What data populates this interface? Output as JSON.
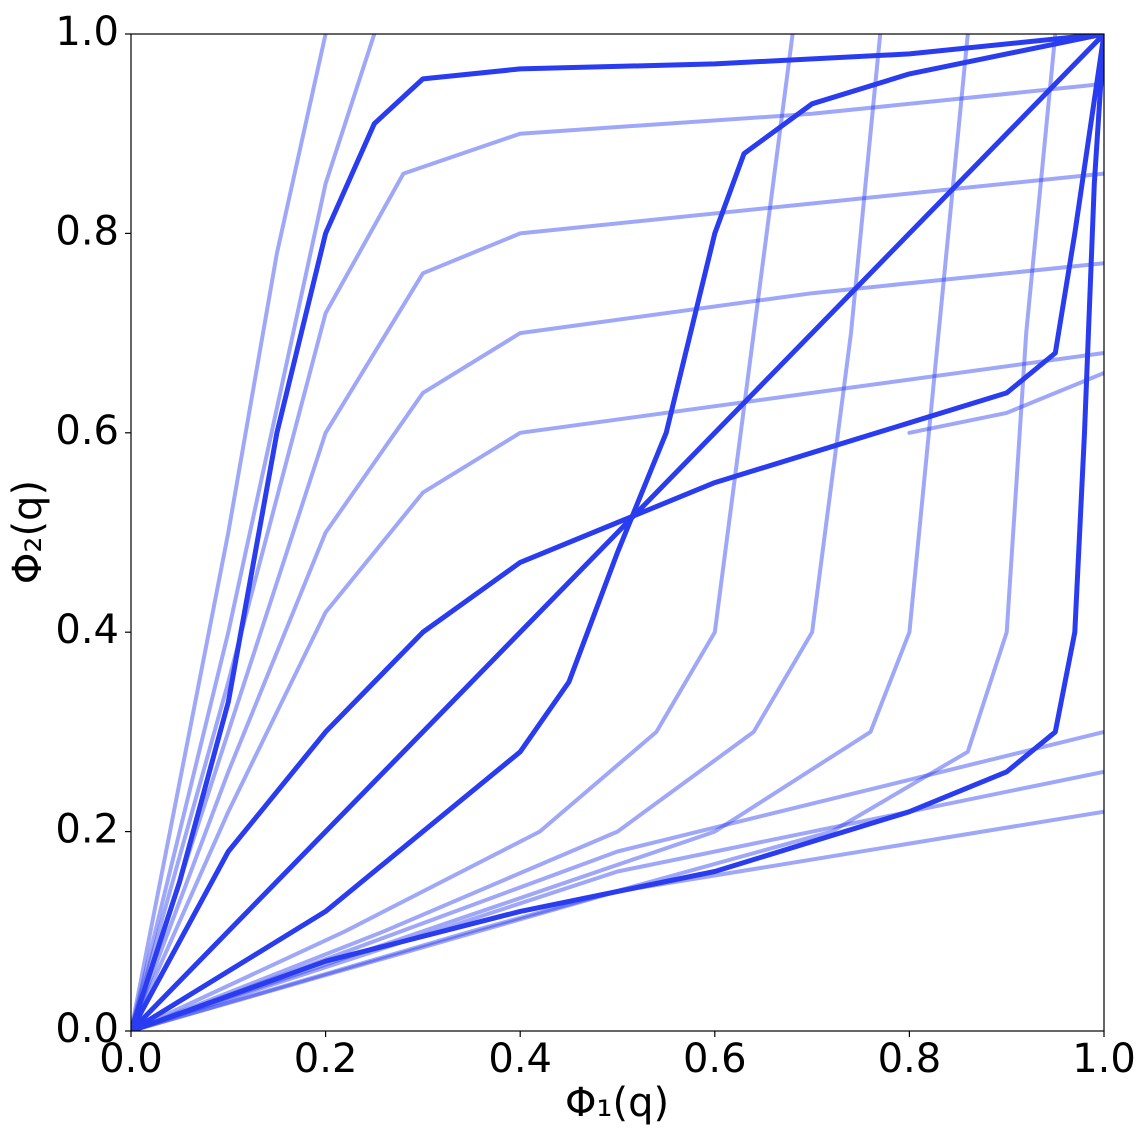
{
  "chart_data": {
    "type": "line",
    "xlabel": "Φ₁(q)",
    "ylabel": "Φ₂(q)",
    "xlim": [
      0,
      1
    ],
    "ylim": [
      0,
      1
    ],
    "xticks": [
      {
        "value": 0,
        "label": "0.0"
      },
      0.2,
      0.4,
      0.6,
      0.8,
      {
        "value": 1,
        "label": "1.0"
      }
    ],
    "yticks": [
      {
        "value": 0,
        "label": "0.0"
      },
      0.2,
      0.4,
      0.6,
      0.8,
      {
        "value": 1,
        "label": "1.0"
      }
    ],
    "grid": false,
    "series": [
      {
        "color": "#2a3cf0",
        "alpha": 0.45,
        "width": 4,
        "x": [
          0,
          0.1,
          0.2,
          0.28,
          0.4,
          0.7,
          1
        ],
        "values": [
          0,
          0.35,
          0.72,
          0.86,
          0.9,
          0.92,
          0.95
        ]
      },
      {
        "color": "#2a3cf0",
        "alpha": 0.45,
        "width": 4,
        "x": [
          0,
          0.1,
          0.2,
          0.3,
          0.4,
          0.7,
          1
        ],
        "values": [
          0,
          0.3,
          0.6,
          0.76,
          0.8,
          0.83,
          0.86
        ]
      },
      {
        "color": "#2a3cf0",
        "alpha": 0.45,
        "width": 4,
        "x": [
          0,
          0.1,
          0.2,
          0.3,
          0.4,
          0.7,
          1
        ],
        "values": [
          0,
          0.26,
          0.5,
          0.64,
          0.7,
          0.74,
          0.77
        ]
      },
      {
        "color": "#2a3cf0",
        "alpha": 0.45,
        "width": 4,
        "x": [
          0,
          0.1,
          0.2,
          0.3,
          0.4,
          0.7,
          1
        ],
        "values": [
          0,
          0.22,
          0.42,
          0.54,
          0.6,
          0.64,
          0.68
        ]
      },
      {
        "color": "#2a3cf0",
        "alpha": 0.45,
        "width": 4,
        "x": [
          0,
          0.05,
          0.1,
          0.15,
          0.2
        ],
        "values": [
          0,
          0.25,
          0.5,
          0.78,
          1
        ]
      },
      {
        "color": "#2a3cf0",
        "alpha": 0.45,
        "width": 4,
        "x": [
          0,
          0.1,
          0.2,
          0.25
        ],
        "values": [
          0,
          0.4,
          0.85,
          1
        ]
      },
      {
        "color": "#2a3cf0",
        "alpha": 0.45,
        "width": 4,
        "x": [
          0.8,
          0.9,
          1
        ],
        "values": [
          0.6,
          0.62,
          0.66
        ]
      },
      {
        "color": "#2a3cf0",
        "alpha": 0.45,
        "width": 4,
        "x": [
          0,
          0.35,
          0.72,
          0.86,
          0.9,
          0.92,
          0.95
        ],
        "values": [
          0,
          0.1,
          0.2,
          0.28,
          0.4,
          0.7,
          1
        ]
      },
      {
        "color": "#2a3cf0",
        "alpha": 0.45,
        "width": 4,
        "x": [
          0,
          0.3,
          0.6,
          0.76,
          0.8,
          0.83,
          0.86
        ],
        "values": [
          0,
          0.1,
          0.2,
          0.3,
          0.4,
          0.7,
          1
        ]
      },
      {
        "color": "#2a3cf0",
        "alpha": 0.45,
        "width": 4,
        "x": [
          0,
          0.26,
          0.5,
          0.64,
          0.7,
          0.74,
          0.77
        ],
        "values": [
          0,
          0.1,
          0.2,
          0.3,
          0.4,
          0.7,
          1
        ]
      },
      {
        "color": "#2a3cf0",
        "alpha": 0.45,
        "width": 4,
        "x": [
          0,
          0.22,
          0.42,
          0.54,
          0.6,
          0.64,
          0.68
        ],
        "values": [
          0,
          0.1,
          0.2,
          0.3,
          0.4,
          0.7,
          1
        ]
      },
      {
        "color": "#2a3cf0",
        "alpha": 0.45,
        "width": 4,
        "x": [
          0,
          0.5,
          1
        ],
        "values": [
          0,
          0.14,
          0.22
        ]
      },
      {
        "color": "#2a3cf0",
        "alpha": 0.45,
        "width": 4,
        "x": [
          0,
          0.5,
          1
        ],
        "values": [
          0,
          0.16,
          0.26
        ]
      },
      {
        "color": "#2a3cf0",
        "alpha": 0.45,
        "width": 4,
        "x": [
          0,
          0.5,
          1
        ],
        "values": [
          0,
          0.18,
          0.3
        ]
      },
      {
        "color": "#2a3cf0",
        "alpha": 1,
        "width": 5,
        "x": [
          0,
          1
        ],
        "values": [
          0,
          1
        ]
      },
      {
        "color": "#2a3cf0",
        "alpha": 1,
        "width": 5,
        "x": [
          0,
          0.05,
          0.1,
          0.15,
          0.2,
          0.25,
          0.3,
          0.4,
          0.6,
          0.8,
          1
        ],
        "values": [
          0,
          0.15,
          0.33,
          0.6,
          0.8,
          0.91,
          0.955,
          0.965,
          0.97,
          0.98,
          1
        ]
      },
      {
        "color": "#2a3cf0",
        "alpha": 1,
        "width": 5,
        "x": [
          0,
          0.2,
          0.4,
          0.6,
          0.8,
          0.9,
          0.95,
          0.97,
          0.98,
          0.99,
          1
        ],
        "values": [
          0,
          0.07,
          0.12,
          0.16,
          0.22,
          0.26,
          0.3,
          0.4,
          0.6,
          0.85,
          1
        ]
      },
      {
        "color": "#2a3cf0",
        "alpha": 1,
        "width": 5,
        "x": [
          0,
          0.1,
          0.2,
          0.3,
          0.4,
          0.5,
          0.6,
          0.7,
          0.8,
          0.9,
          0.95,
          0.97,
          1
        ],
        "values": [
          0,
          0.18,
          0.3,
          0.4,
          0.47,
          0.51,
          0.55,
          0.58,
          0.61,
          0.64,
          0.68,
          0.8,
          1
        ]
      },
      {
        "color": "#2a3cf0",
        "alpha": 1,
        "width": 5,
        "x": [
          0,
          0.2,
          0.3,
          0.4,
          0.45,
          0.5,
          0.55,
          0.6,
          0.63,
          0.7,
          0.8,
          1
        ],
        "values": [
          0,
          0.12,
          0.2,
          0.28,
          0.35,
          0.48,
          0.6,
          0.8,
          0.88,
          0.93,
          0.96,
          1
        ]
      }
    ]
  }
}
